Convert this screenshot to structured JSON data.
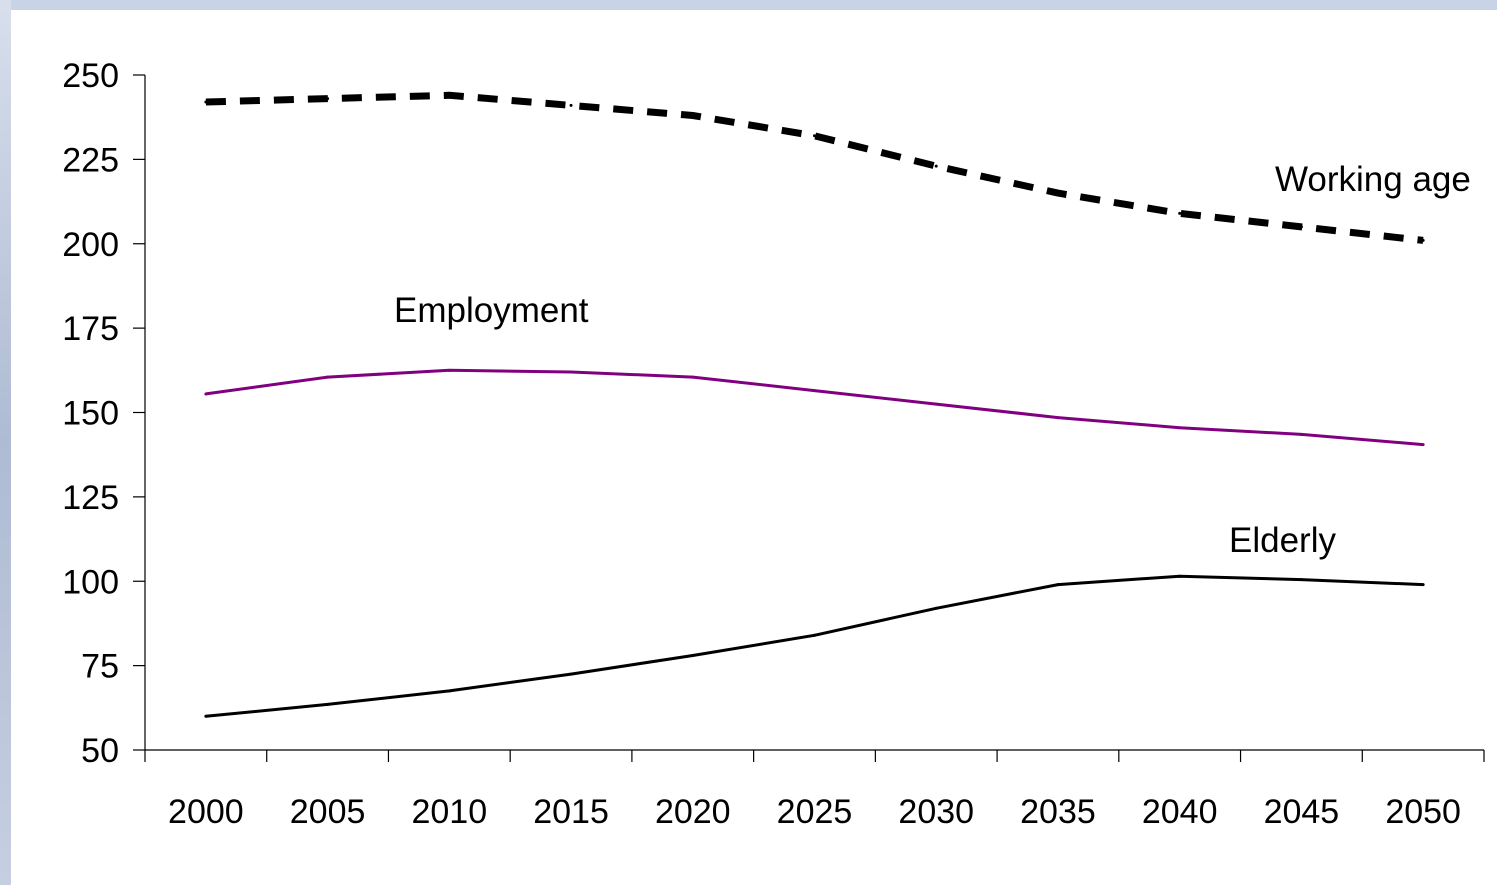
{
  "chart_data": {
    "type": "line",
    "title": "",
    "xlabel": "",
    "ylabel": "",
    "x": [
      2000,
      2005,
      2010,
      2015,
      2020,
      2025,
      2030,
      2035,
      2040,
      2045,
      2050
    ],
    "x_tick_labels": [
      "2000",
      "2005",
      "2010",
      "2015",
      "2020",
      "2025",
      "2030",
      "2035",
      "2040",
      "2045",
      "2050"
    ],
    "ylim": [
      50,
      250
    ],
    "y_ticks": [
      50,
      75,
      100,
      125,
      150,
      175,
      200,
      225,
      250
    ],
    "y_tick_labels": [
      "50",
      "75",
      "100",
      "125",
      "150",
      "175",
      "200",
      "225",
      "250"
    ],
    "grid": false,
    "legend": "none",
    "series": [
      {
        "name": "Working age",
        "style": "dashed",
        "color": "#000000",
        "values": [
          242,
          243,
          244,
          241,
          238,
          232,
          223,
          215,
          209,
          205,
          201
        ]
      },
      {
        "name": "Employment",
        "style": "solid",
        "color": "#800080",
        "values": [
          155.5,
          160.5,
          162.5,
          162,
          160.5,
          156.5,
          152.5,
          148.5,
          145.5,
          143.5,
          140.5
        ]
      },
      {
        "name": "Elderly",
        "style": "solid",
        "color": "#000000",
        "values": [
          60,
          63.5,
          67.5,
          72.5,
          78,
          84,
          92,
          99,
          101.5,
          100.5,
          99
        ]
      }
    ]
  }
}
